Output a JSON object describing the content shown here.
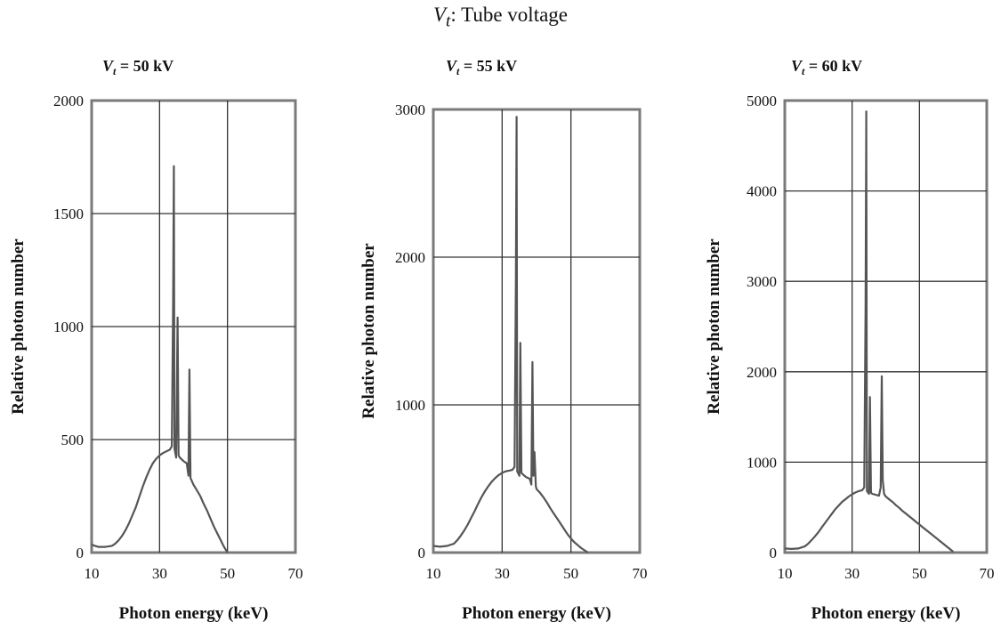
{
  "figure": {
    "title_var": "V",
    "title_sub": "t",
    "title_text": ": Tube voltage"
  },
  "chart_data": [
    {
      "type": "line",
      "subtitle": "V_t = 50 kV",
      "subtitle_value": "= 50 kV",
      "xlabel": "Photon energy (keV)",
      "ylabel": "Relative photon number",
      "xlim": [
        10,
        70
      ],
      "ylim": [
        0,
        2000
      ],
      "x_ticks": [
        10,
        30,
        50,
        70
      ],
      "y_ticks": [
        0,
        500,
        1000,
        1500,
        2000
      ],
      "grid": true,
      "series": [
        {
          "color": "#555555",
          "points": [
            [
              10,
              35
            ],
            [
              11,
              30
            ],
            [
              12,
              25
            ],
            [
              14,
              25
            ],
            [
              16,
              30
            ],
            [
              17,
              40
            ],
            [
              18,
              55
            ],
            [
              19,
              75
            ],
            [
              20,
              100
            ],
            [
              21,
              130
            ],
            [
              22,
              165
            ],
            [
              23,
              200
            ],
            [
              24,
              245
            ],
            [
              25,
              290
            ],
            [
              26,
              330
            ],
            [
              27,
              365
            ],
            [
              28,
              395
            ],
            [
              29,
              415
            ],
            [
              30,
              430
            ],
            [
              31,
              440
            ],
            [
              32,
              448
            ],
            [
              33,
              455
            ],
            [
              33.6,
              470
            ],
            [
              34,
              1120
            ],
            [
              34.2,
              1710
            ],
            [
              34.4,
              460
            ],
            [
              34.9,
              420
            ],
            [
              35.3,
              1040
            ],
            [
              35.6,
              430
            ],
            [
              36,
              420
            ],
            [
              37,
              405
            ],
            [
              38,
              395
            ],
            [
              38.5,
              340
            ],
            [
              38.8,
              810
            ],
            [
              39.1,
              330
            ],
            [
              40,
              300
            ],
            [
              41,
              275
            ],
            [
              42,
              250
            ],
            [
              43,
              215
            ],
            [
              44,
              185
            ],
            [
              45,
              150
            ],
            [
              46,
              115
            ],
            [
              47,
              85
            ],
            [
              48,
              55
            ],
            [
              49,
              25
            ],
            [
              50,
              0
            ]
          ]
        }
      ]
    },
    {
      "type": "line",
      "subtitle": "V_t = 55 kV",
      "subtitle_value": "= 55 kV",
      "xlabel": "Photon energy (keV)",
      "ylabel": "Relative photon number",
      "xlim": [
        10,
        70
      ],
      "ylim": [
        0,
        3000
      ],
      "x_ticks": [
        10,
        30,
        50,
        70
      ],
      "y_ticks": [
        0,
        1000,
        2000,
        3000
      ],
      "grid": true,
      "series": [
        {
          "color": "#555555",
          "points": [
            [
              10,
              45
            ],
            [
              12,
              40
            ],
            [
              14,
              45
            ],
            [
              16,
              60
            ],
            [
              17,
              85
            ],
            [
              18,
              115
            ],
            [
              19,
              150
            ],
            [
              20,
              190
            ],
            [
              21,
              235
            ],
            [
              22,
              280
            ],
            [
              23,
              330
            ],
            [
              24,
              375
            ],
            [
              25,
              415
            ],
            [
              26,
              450
            ],
            [
              27,
              480
            ],
            [
              28,
              505
            ],
            [
              29,
              525
            ],
            [
              30,
              540
            ],
            [
              31,
              550
            ],
            [
              32,
              555
            ],
            [
              33,
              560
            ],
            [
              33.6,
              580
            ],
            [
              34,
              1850
            ],
            [
              34.2,
              2950
            ],
            [
              34.4,
              550
            ],
            [
              35,
              520
            ],
            [
              35.3,
              1420
            ],
            [
              35.6,
              540
            ],
            [
              36,
              530
            ],
            [
              37,
              510
            ],
            [
              38,
              500
            ],
            [
              38.5,
              460
            ],
            [
              38.8,
              1290
            ],
            [
              39.1,
              520
            ],
            [
              39.4,
              680
            ],
            [
              39.8,
              450
            ],
            [
              40,
              430
            ],
            [
              41,
              405
            ],
            [
              42,
              375
            ],
            [
              43,
              340
            ],
            [
              44,
              300
            ],
            [
              45,
              265
            ],
            [
              46,
              230
            ],
            [
              47,
              195
            ],
            [
              48,
              160
            ],
            [
              49,
              125
            ],
            [
              50,
              95
            ],
            [
              51,
              70
            ],
            [
              52,
              50
            ],
            [
              53,
              30
            ],
            [
              54,
              15
            ],
            [
              55,
              0
            ]
          ]
        }
      ]
    },
    {
      "type": "line",
      "subtitle": "V_t = 60 kV",
      "subtitle_value": "= 60 kV",
      "xlabel": "Photon energy (keV)",
      "ylabel": "Relative photon number",
      "xlim": [
        10,
        70
      ],
      "ylim": [
        0,
        5000
      ],
      "x_ticks": [
        10,
        30,
        50,
        70
      ],
      "y_ticks": [
        0,
        1000,
        2000,
        3000,
        4000,
        5000
      ],
      "grid": true,
      "series": [
        {
          "color": "#555555",
          "points": [
            [
              10,
              45
            ],
            [
              12,
              40
            ],
            [
              14,
              45
            ],
            [
              16,
              70
            ],
            [
              17,
              100
            ],
            [
              18,
              140
            ],
            [
              19,
              180
            ],
            [
              20,
              225
            ],
            [
              21,
              280
            ],
            [
              22,
              330
            ],
            [
              23,
              380
            ],
            [
              24,
              430
            ],
            [
              25,
              480
            ],
            [
              26,
              520
            ],
            [
              27,
              560
            ],
            [
              28,
              590
            ],
            [
              29,
              620
            ],
            [
              30,
              645
            ],
            [
              31,
              665
            ],
            [
              32,
              680
            ],
            [
              33,
              690
            ],
            [
              33.6,
              720
            ],
            [
              34,
              2700
            ],
            [
              34.2,
              4880
            ],
            [
              34.4,
              680
            ],
            [
              35,
              650
            ],
            [
              35.3,
              1720
            ],
            [
              35.6,
              660
            ],
            [
              36,
              650
            ],
            [
              37,
              640
            ],
            [
              38,
              630
            ],
            [
              38.5,
              720
            ],
            [
              38.8,
              1950
            ],
            [
              39.1,
              800
            ],
            [
              39.5,
              650
            ],
            [
              40,
              620
            ],
            [
              41,
              590
            ],
            [
              42,
              560
            ],
            [
              43,
              525
            ],
            [
              44,
              495
            ],
            [
              45,
              460
            ],
            [
              46,
              430
            ],
            [
              47,
              400
            ],
            [
              48,
              370
            ],
            [
              49,
              340
            ],
            [
              50,
              310
            ],
            [
              51,
              280
            ],
            [
              52,
              250
            ],
            [
              53,
              220
            ],
            [
              54,
              190
            ],
            [
              55,
              160
            ],
            [
              56,
              130
            ],
            [
              57,
              100
            ],
            [
              58,
              70
            ],
            [
              59,
              40
            ],
            [
              60,
              10
            ]
          ]
        }
      ]
    }
  ]
}
